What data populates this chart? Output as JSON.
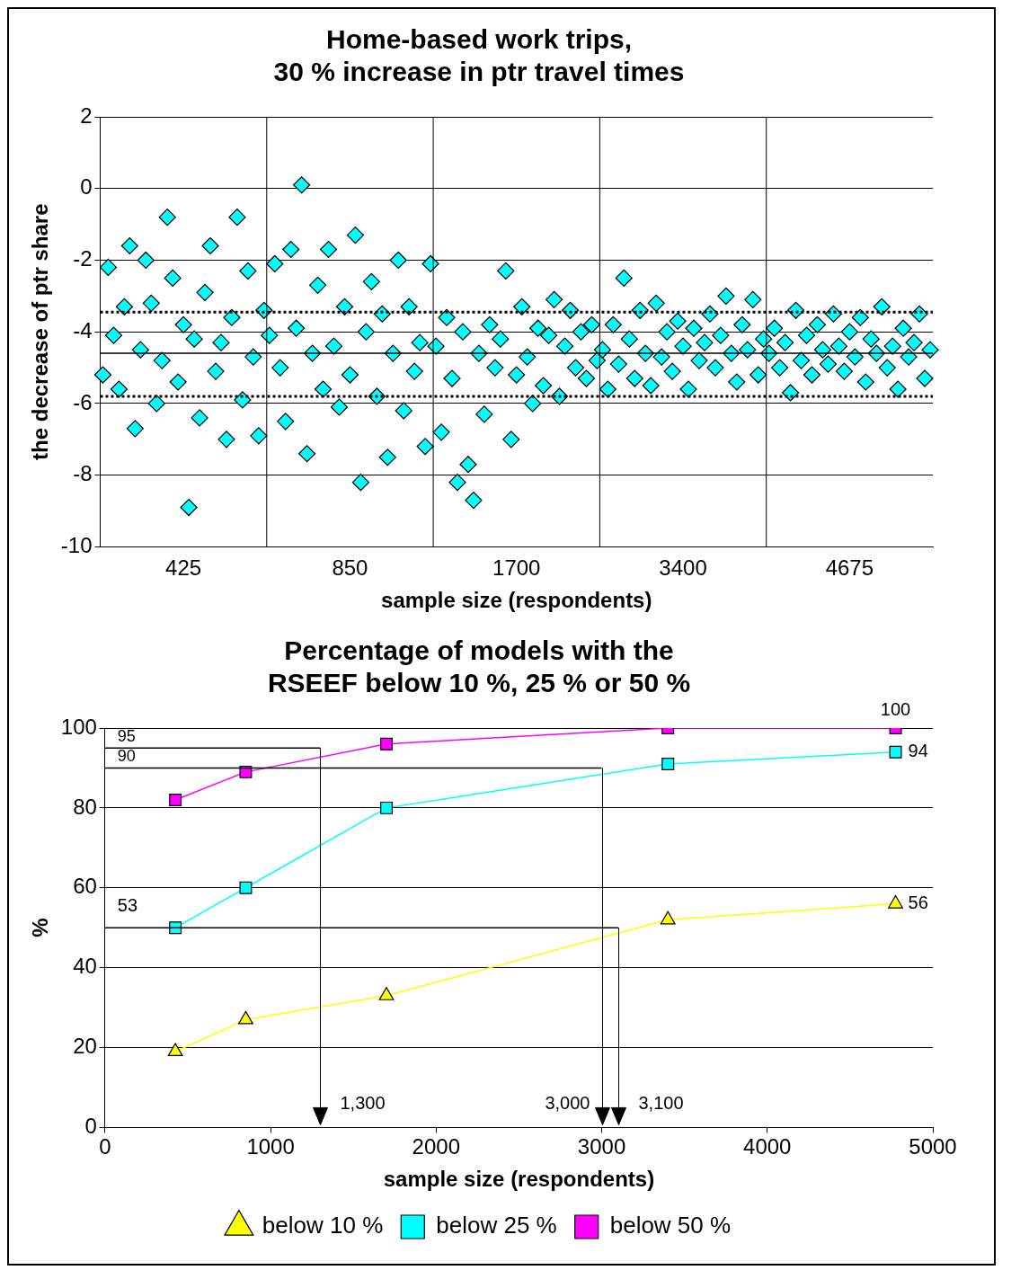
{
  "chart_data": [
    {
      "type": "scatter",
      "title": "Home-based work trips,\n30 % increase in ptr travel times",
      "xlabel": "sample size (respondents)",
      "ylabel": "the decrease of ptr share",
      "categories": [
        null,
        null,
        null,
        null,
        null,
        null,
        null,
        null,
        null,
        null,
        null,
        null,
        null,
        null,
        null,
        "425",
        null,
        null,
        null,
        null,
        null,
        null,
        null,
        null,
        null,
        null,
        null,
        null,
        null,
        null,
        null,
        null,
        null,
        null,
        null,
        null,
        null,
        null,
        null,
        null,
        null,
        null,
        null,
        null,
        null,
        null,
        "850",
        null,
        null,
        null,
        null,
        null,
        null,
        null,
        null,
        null,
        null,
        null,
        null,
        null,
        null,
        null,
        null,
        null,
        null,
        null,
        null,
        null,
        null,
        null,
        null,
        null,
        null,
        null,
        null,
        null,
        null,
        "1700",
        null,
        null,
        null,
        null,
        null,
        null,
        null,
        null,
        null,
        null,
        null,
        null,
        null,
        null,
        null,
        null,
        null,
        null,
        null,
        null,
        null,
        null,
        null,
        null,
        null,
        null,
        null,
        null,
        null,
        null,
        "3400",
        null,
        null,
        null,
        null,
        null,
        null,
        null,
        null,
        null,
        null,
        null,
        null,
        null,
        null,
        null,
        null,
        null,
        null,
        null,
        null,
        null,
        null,
        null,
        null,
        null,
        null,
        null,
        null,
        null,
        null,
        "4675",
        null,
        null,
        null,
        null,
        null,
        null,
        null,
        null,
        null,
        null,
        null,
        null,
        null,
        null,
        null
      ],
      "series": [
        {
          "color": "#00ffff",
          "values": [
            -5.2,
            -2.2,
            -4.1,
            -5.6,
            -3.3,
            -1.6,
            -6.7,
            -4.5,
            -2.0,
            -3.2,
            -6.0,
            -4.8,
            -0.8,
            -2.5,
            -5.4,
            -3.8,
            -8.9,
            -4.2,
            -6.4,
            -2.9,
            -1.6,
            -5.1,
            -4.3,
            -7.0,
            -3.6,
            -0.8,
            -5.9,
            -2.3,
            -4.7,
            -6.9,
            -3.4,
            -4.1,
            -2.1,
            -5.0,
            -6.5,
            -1.7,
            -3.9,
            0.1,
            -7.4,
            -4.6,
            -2.7,
            -5.6,
            -1.7,
            -4.4,
            -6.1,
            -3.3,
            -5.2,
            -1.3,
            -8.2,
            -4.0,
            -2.6,
            -5.8,
            -3.5,
            -7.5,
            -4.6,
            -2.0,
            -6.2,
            -3.3,
            -5.1,
            -4.3,
            -7.2,
            -2.1,
            -4.4,
            -6.8,
            -3.6,
            -5.3,
            -8.2,
            -4.0,
            -7.7,
            -8.7,
            -4.6,
            -6.3,
            -3.8,
            -5.0,
            -4.2,
            -2.3,
            -7.0,
            -5.2,
            -3.3,
            -4.7,
            -6.0,
            -3.9,
            -5.5,
            -4.1,
            -3.1,
            -5.8,
            -4.4,
            -3.4,
            -5.0,
            -4.0,
            -5.3,
            -3.8,
            -4.8,
            -4.5,
            -5.6,
            -3.8,
            -4.9,
            -2.5,
            -4.2,
            -5.3,
            -3.4,
            -4.6,
            -5.5,
            -3.2,
            -4.7,
            -4.0,
            -5.1,
            -3.7,
            -4.4,
            -5.6,
            -3.9,
            -4.8,
            -4.3,
            -3.5,
            -5.0,
            -4.1,
            -3.0,
            -4.6,
            -5.4,
            -3.8,
            -4.5,
            -3.1,
            -5.2,
            -4.2,
            -4.6,
            -3.9,
            -5.0,
            -4.3,
            -5.7,
            -3.4,
            -4.8,
            -4.1,
            -5.2,
            -3.8,
            -4.5,
            -4.9,
            -3.5,
            -4.4,
            -5.1,
            -4.0,
            -4.7,
            -3.6,
            -5.4,
            -4.2,
            -4.6,
            -3.3,
            -5.0,
            -4.4,
            -5.6,
            -3.9,
            -4.7,
            -4.3,
            -3.5,
            -5.3,
            -4.5
          ]
        }
      ],
      "marker": "diamond",
      "ylim": [
        -10,
        2
      ],
      "yticks": [
        -10,
        -8,
        -6,
        -4,
        -2,
        0,
        2
      ],
      "grid": true,
      "legend": false,
      "ref_lines": [
        {
          "axis": "y",
          "value": -4.6,
          "line_style": "solid"
        },
        {
          "axis": "y",
          "value": -3.45,
          "line_style": "dotted"
        },
        {
          "axis": "y",
          "value": -5.8,
          "line_style": "dotted"
        }
      ]
    },
    {
      "type": "line",
      "title": "Percentage of models with the\nRSEEF below 10 %, 25 % or 50 %",
      "xlabel": "sample size (respondents)",
      "ylabel": "%",
      "series": [
        {
          "name": "below 10 %",
          "color": "#ffff00",
          "marker": "triangle",
          "x": [
            425,
            850,
            1700,
            3400,
            4775
          ],
          "values": [
            19,
            27,
            33,
            52,
            56
          ],
          "value_labels": [
            null,
            null,
            null,
            null,
            "56"
          ]
        },
        {
          "name": "below 25 %",
          "color": "#00ffff",
          "marker": "square",
          "x": [
            425,
            850,
            1700,
            3400,
            4775
          ],
          "values": [
            50,
            60,
            80,
            91,
            94
          ],
          "value_labels": [
            null,
            null,
            null,
            null,
            "94"
          ]
        },
        {
          "name": "below 50 %",
          "color": "#ff00ff",
          "marker": "square",
          "x": [
            425,
            850,
            1700,
            3400,
            4775
          ],
          "values": [
            82,
            89,
            96,
            100,
            100
          ],
          "value_labels": [
            null,
            null,
            null,
            null,
            "100"
          ]
        }
      ],
      "annotations": [
        "53"
      ],
      "xlim": [
        0,
        5000
      ],
      "xticks": [
        0,
        1000,
        2000,
        3000,
        4000,
        5000
      ],
      "ylim": [
        0,
        100
      ],
      "yticks": [
        0,
        20,
        40,
        60,
        80,
        100
      ],
      "grid": "y",
      "legend": "bottom",
      "ref_lines": [
        {
          "axis": "y",
          "value": 95,
          "label": "95"
        },
        {
          "axis": "y",
          "value": 90,
          "label": "90"
        },
        {
          "axis": "y",
          "value": 50
        },
        {
          "axis": "x",
          "value": 1300,
          "label": "1,300"
        },
        {
          "axis": "x",
          "value": 3000,
          "label": "3,000"
        },
        {
          "axis": "x",
          "value": 3100,
          "label": "3,100"
        }
      ]
    }
  ]
}
